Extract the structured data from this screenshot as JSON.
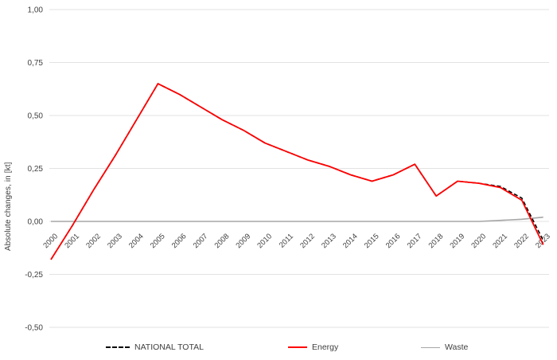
{
  "chart_data": {
    "type": "line",
    "title": "",
    "xlabel": "",
    "ylabel": "Absolute changes, in [kt]",
    "ylim": [
      -0.5,
      1.0
    ],
    "grid": true,
    "legend_position": "bottom",
    "decimal_separator": ",",
    "ytick_values": [
      1.0,
      0.75,
      0.5,
      0.25,
      0.0,
      -0.25,
      -0.5
    ],
    "ytick_labels": [
      "1,00",
      "0,75",
      "0,50",
      "0,25",
      "0,00",
      "-0,25",
      "-0,50"
    ],
    "categories": [
      "2000",
      "2001",
      "2002",
      "2003",
      "2004",
      "2005",
      "2006",
      "2007",
      "2008",
      "2009",
      "2010",
      "2011",
      "2012",
      "2013",
      "2014",
      "2015",
      "2016",
      "2017",
      "2018",
      "2019",
      "2020",
      "2021",
      "2022",
      "2023"
    ],
    "series": [
      {
        "name": "NATIONAL TOTAL",
        "color": "#000000",
        "dash": "dashed",
        "width": 1.6,
        "values": [
          -0.18,
          -0.02,
          0.15,
          0.31,
          0.48,
          0.65,
          0.6,
          0.54,
          0.48,
          0.43,
          0.37,
          0.33,
          0.29,
          0.26,
          0.22,
          0.19,
          0.22,
          0.27,
          0.12,
          0.19,
          0.18,
          0.165,
          0.11,
          -0.09
        ]
      },
      {
        "name": "Energy",
        "color": "#ff0000",
        "dash": "solid",
        "width": 1.8,
        "values": [
          -0.18,
          -0.02,
          0.15,
          0.31,
          0.48,
          0.65,
          0.6,
          0.54,
          0.48,
          0.43,
          0.37,
          0.33,
          0.29,
          0.26,
          0.22,
          0.19,
          0.22,
          0.27,
          0.12,
          0.19,
          0.18,
          0.16,
          0.1,
          -0.11
        ]
      },
      {
        "name": "Waste",
        "color": "#a6a6a6",
        "dash": "solid",
        "width": 1.6,
        "values": [
          0.0,
          0.0,
          0.0,
          0.0,
          0.0,
          0.0,
          0.0,
          0.0,
          0.0,
          0.0,
          0.0,
          0.0,
          0.0,
          0.0,
          0.0,
          0.0,
          0.0,
          0.0,
          0.0,
          0.0,
          0.0,
          0.005,
          0.01,
          0.02
        ]
      }
    ]
  },
  "colors": {
    "grid": "#e2e2e2",
    "tick_text": "#404040",
    "background": "#ffffff"
  }
}
